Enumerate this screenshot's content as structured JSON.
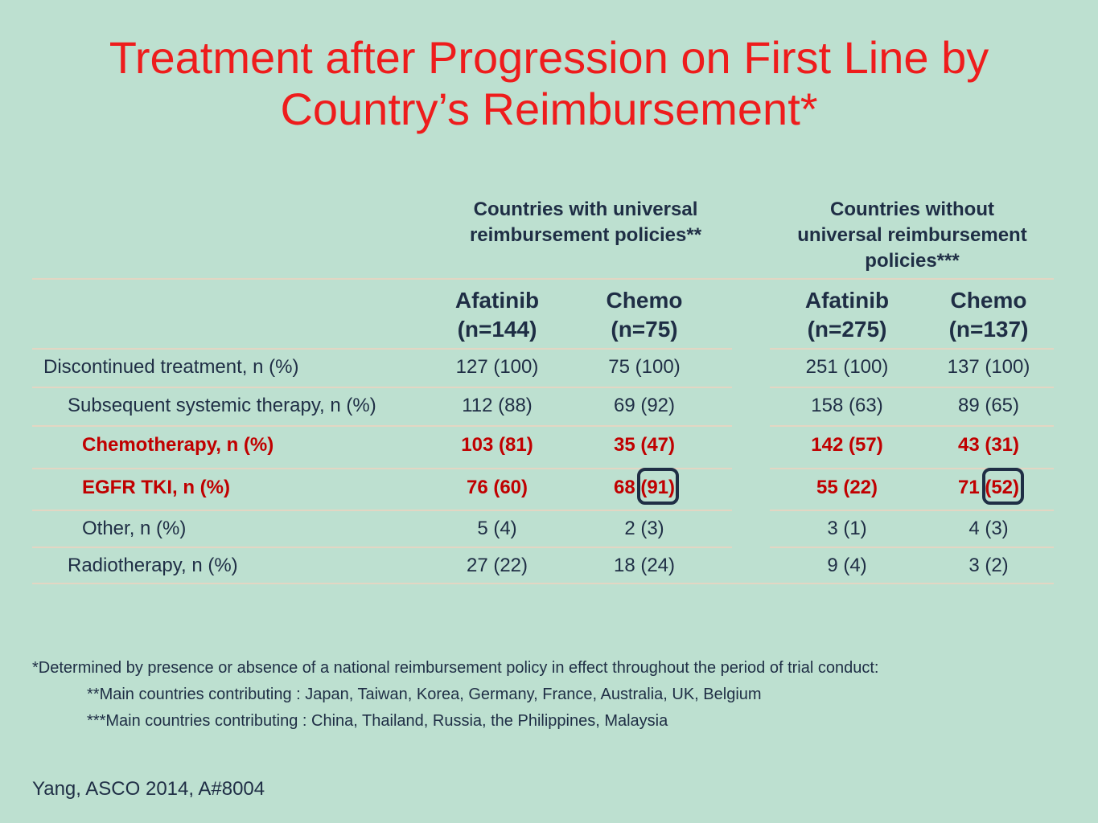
{
  "title": {
    "line1": "Treatment after Progression on First Line by",
    "line2": "Country’s Reimbursement*"
  },
  "groups": {
    "universal": {
      "line1": "Countries with universal",
      "line2": "reimbursement policies**"
    },
    "non_universal": {
      "line1": "Countries without",
      "line2": "universal reimbursement",
      "line3": "policies***"
    }
  },
  "columns": [
    {
      "name": "Afatinib",
      "n": "(n=144)"
    },
    {
      "name": "Chemo",
      "n": "(n=75)"
    },
    {
      "name": "Afatinib",
      "n": "(n=275)"
    },
    {
      "name": "Chemo",
      "n": "(n=137)"
    }
  ],
  "rows": [
    {
      "label": "Discontinued treatment, n (%)",
      "values": [
        "127 (100)",
        "75 (100)",
        "251 (100)",
        "137 (100)"
      ]
    },
    {
      "label": "Subsequent systemic therapy, n (%)",
      "values": [
        "112 (88)",
        "69 (92)",
        "158 (63)",
        "89 (65)"
      ]
    },
    {
      "label": "Chemotherapy, n (%)",
      "values": [
        "103 (81)",
        "35 (47)",
        "142 (57)",
        "43 (31)"
      ]
    },
    {
      "label": "EGFR TKI, n (%)",
      "values": [
        "76 (60)",
        "68 (91)",
        "55 (22)",
        "71 (52)"
      ]
    },
    {
      "label": "Other, n (%)",
      "values": [
        "5 (4)",
        "2 (3)",
        "3 (1)",
        "4 (3)"
      ]
    },
    {
      "label": "Radiotherapy, n (%)",
      "values": [
        "27 (22)",
        "18 (24)",
        "9 (4)",
        "3 (2)"
      ]
    }
  ],
  "footnotes": {
    "main": "*Determined by presence or absence of a national reimbursement policy in effect throughout the period of trial conduct:",
    "universal": "**Main countries contributing : Japan, Taiwan, Korea, Germany, France, Australia, UK, Belgium",
    "non_universal": "***Main countries contributing :  China, Thailand, Russia, the Philippines, Malaysia"
  },
  "citation": "Yang, ASCO 2014, A#8004",
  "colors": {
    "background": "#bde0d0",
    "title": "#ee1c1c",
    "text": "#1f2e45",
    "highlight_rows": "#c00000",
    "rule": "#e3d6c3"
  }
}
